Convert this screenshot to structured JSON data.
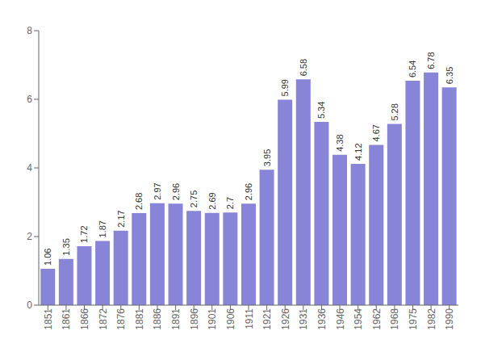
{
  "chart_data": {
    "type": "bar",
    "categories": [
      "1851",
      "1861",
      "1866",
      "1872",
      "1876",
      "1881",
      "1886",
      "1891",
      "1896",
      "1901",
      "1906",
      "1911",
      "1921",
      "1926",
      "1931",
      "1936",
      "1946",
      "1954",
      "1962",
      "1968",
      "1975",
      "1982",
      "1990"
    ],
    "values": [
      1.06,
      1.35,
      1.72,
      1.87,
      2.17,
      2.68,
      2.97,
      2.96,
      2.75,
      2.69,
      2.7,
      2.96,
      3.95,
      5.99,
      6.58,
      5.34,
      4.38,
      4.12,
      4.67,
      5.28,
      6.54,
      6.78,
      6.35
    ],
    "color": "#8884d8",
    "ylim": [
      0,
      8
    ],
    "yticks": [
      0,
      2,
      4,
      6,
      8
    ],
    "grid": false,
    "data_labels": true
  }
}
